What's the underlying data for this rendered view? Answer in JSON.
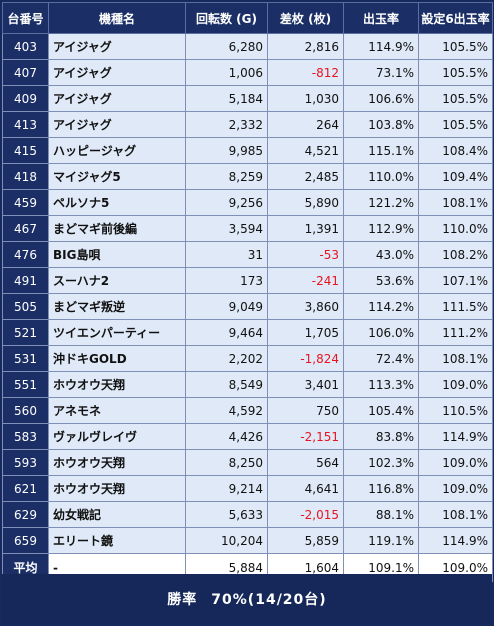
{
  "headers": [
    "台番号",
    "機種名",
    "回転数 (G)",
    "差枚 (枚)",
    "出玉率",
    "設定6出玉率"
  ],
  "rows": [
    {
      "no": "403",
      "name": "アイジャグ",
      "spins": "6,280",
      "diff": "2,816",
      "rate": "114.9%",
      "s6": "105.5%",
      "neg": false
    },
    {
      "no": "407",
      "name": "アイジャグ",
      "spins": "1,006",
      "diff": "-812",
      "rate": "73.1%",
      "s6": "105.5%",
      "neg": true
    },
    {
      "no": "409",
      "name": "アイジャグ",
      "spins": "5,184",
      "diff": "1,030",
      "rate": "106.6%",
      "s6": "105.5%",
      "neg": false
    },
    {
      "no": "413",
      "name": "アイジャグ",
      "spins": "2,332",
      "diff": "264",
      "rate": "103.8%",
      "s6": "105.5%",
      "neg": false
    },
    {
      "no": "415",
      "name": "ハッピージャグ",
      "spins": "9,985",
      "diff": "4,521",
      "rate": "115.1%",
      "s6": "108.4%",
      "neg": false
    },
    {
      "no": "418",
      "name": "マイジャグ5",
      "spins": "8,259",
      "diff": "2,485",
      "rate": "110.0%",
      "s6": "109.4%",
      "neg": false
    },
    {
      "no": "459",
      "name": "ペルソナ5",
      "spins": "9,256",
      "diff": "5,890",
      "rate": "121.2%",
      "s6": "108.1%",
      "neg": false
    },
    {
      "no": "467",
      "name": "まどマギ前後編",
      "spins": "3,594",
      "diff": "1,391",
      "rate": "112.9%",
      "s6": "110.0%",
      "neg": false
    },
    {
      "no": "476",
      "name": "BIG島唄",
      "spins": "31",
      "diff": "-53",
      "rate": "43.0%",
      "s6": "108.2%",
      "neg": true
    },
    {
      "no": "491",
      "name": "スーハナ2",
      "spins": "173",
      "diff": "-241",
      "rate": "53.6%",
      "s6": "107.1%",
      "neg": true
    },
    {
      "no": "505",
      "name": "まどマギ叛逆",
      "spins": "9,049",
      "diff": "3,860",
      "rate": "114.2%",
      "s6": "111.5%",
      "neg": false
    },
    {
      "no": "521",
      "name": "ツイエンパーティー",
      "spins": "9,464",
      "diff": "1,705",
      "rate": "106.0%",
      "s6": "111.2%",
      "neg": false
    },
    {
      "no": "531",
      "name": "沖ドキGOLD",
      "spins": "2,202",
      "diff": "-1,824",
      "rate": "72.4%",
      "s6": "108.1%",
      "neg": true
    },
    {
      "no": "551",
      "name": "ホウオウ天翔",
      "spins": "8,549",
      "diff": "3,401",
      "rate": "113.3%",
      "s6": "109.0%",
      "neg": false
    },
    {
      "no": "560",
      "name": "アネモネ",
      "spins": "4,592",
      "diff": "750",
      "rate": "105.4%",
      "s6": "110.5%",
      "neg": false
    },
    {
      "no": "583",
      "name": "ヴァルヴレイヴ",
      "spins": "4,426",
      "diff": "-2,151",
      "rate": "83.8%",
      "s6": "114.9%",
      "neg": true
    },
    {
      "no": "593",
      "name": "ホウオウ天翔",
      "spins": "8,250",
      "diff": "564",
      "rate": "102.3%",
      "s6": "109.0%",
      "neg": false
    },
    {
      "no": "621",
      "name": "ホウオウ天翔",
      "spins": "9,214",
      "diff": "4,641",
      "rate": "116.8%",
      "s6": "109.0%",
      "neg": false
    },
    {
      "no": "629",
      "name": "幼女戦記",
      "spins": "5,633",
      "diff": "-2,015",
      "rate": "88.1%",
      "s6": "108.1%",
      "neg": true
    },
    {
      "no": "659",
      "name": "エリート鏡",
      "spins": "10,204",
      "diff": "5,859",
      "rate": "119.1%",
      "s6": "114.9%",
      "neg": false
    }
  ],
  "average": {
    "label": "平均",
    "name": "-",
    "spins": "5,884",
    "diff": "1,604",
    "rate": "109.1%",
    "s6": "109.0%"
  },
  "footer": {
    "label": "勝率",
    "value": "70%(14/20台)"
  },
  "colors": {
    "header_bg": "#1b2f66",
    "cell_bg": "#dfe9f7",
    "negative": "#e8141f"
  }
}
